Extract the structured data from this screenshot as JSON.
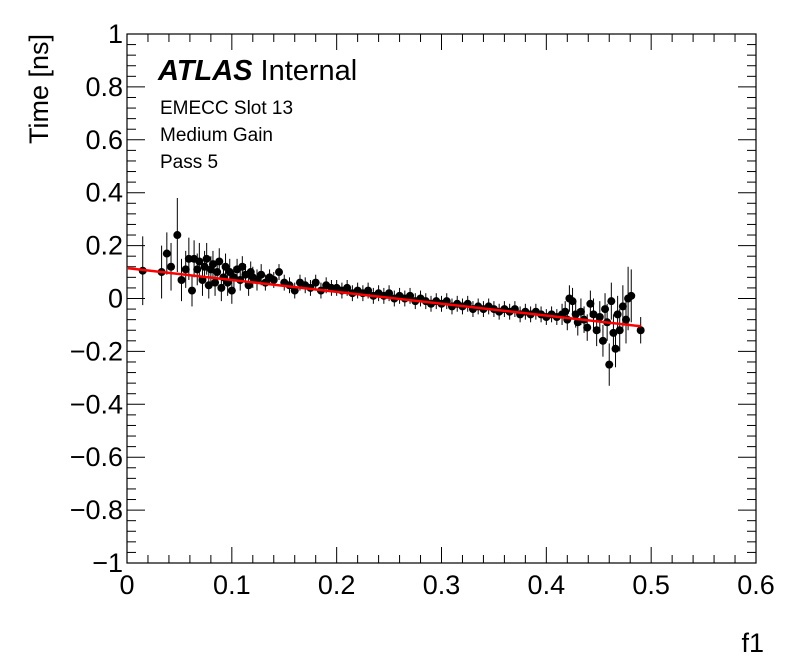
{
  "chart_data": {
    "type": "scatter",
    "xlabel": "f1",
    "ylabel": "Time [ns]",
    "xlim": [
      0,
      0.6
    ],
    "ylim": [
      -1,
      1
    ],
    "x_ticks": [
      0,
      0.1,
      0.2,
      0.3,
      0.4,
      0.5,
      0.6
    ],
    "x_tick_labels": [
      "0",
      "0.1",
      "0.2",
      "0.3",
      "0.4",
      "0.5",
      "0.6"
    ],
    "y_ticks": [
      -1,
      -0.8,
      -0.6,
      -0.4,
      -0.2,
      0,
      0.2,
      0.4,
      0.6,
      0.8,
      1
    ],
    "y_tick_labels": [
      "−1",
      "−0.8",
      "−0.6",
      "−0.4",
      "−0.2",
      "0",
      "0.2",
      "0.4",
      "0.6",
      "0.8",
      "1"
    ],
    "grid": false,
    "annotations": {
      "atlas_bold": "ATLAS",
      "atlas_rest": "Internal",
      "line1": "EMECC Slot 13",
      "line2": "Medium Gain",
      "line3": "Pass 5"
    },
    "fit": {
      "x_range": [
        0.0,
        0.49
      ],
      "y_range": [
        0.115,
        -0.105
      ],
      "color": "#ff0000"
    },
    "marker_color": "#000000",
    "series": [
      {
        "points": [
          {
            "x": 0.015,
            "y": 0.105,
            "err": 0.13
          },
          {
            "x": 0.033,
            "y": 0.1,
            "err": 0.1
          },
          {
            "x": 0.038,
            "y": 0.17,
            "err": 0.08
          },
          {
            "x": 0.042,
            "y": 0.12,
            "err": 0.09
          },
          {
            "x": 0.048,
            "y": 0.24,
            "err": 0.14
          },
          {
            "x": 0.052,
            "y": 0.07,
            "err": 0.08
          },
          {
            "x": 0.056,
            "y": 0.11,
            "err": 0.07
          },
          {
            "x": 0.059,
            "y": 0.15,
            "err": 0.08
          },
          {
            "x": 0.062,
            "y": 0.03,
            "err": 0.06
          },
          {
            "x": 0.064,
            "y": 0.15,
            "err": 0.07
          },
          {
            "x": 0.067,
            "y": 0.11,
            "err": 0.06
          },
          {
            "x": 0.069,
            "y": 0.14,
            "err": 0.07
          },
          {
            "x": 0.072,
            "y": 0.07,
            "err": 0.06
          },
          {
            "x": 0.074,
            "y": 0.12,
            "err": 0.06
          },
          {
            "x": 0.076,
            "y": 0.15,
            "err": 0.06
          },
          {
            "x": 0.078,
            "y": 0.05,
            "err": 0.05
          },
          {
            "x": 0.08,
            "y": 0.11,
            "err": 0.05
          },
          {
            "x": 0.082,
            "y": 0.13,
            "err": 0.05
          },
          {
            "x": 0.084,
            "y": 0.06,
            "err": 0.05
          },
          {
            "x": 0.086,
            "y": 0.1,
            "err": 0.05
          },
          {
            "x": 0.088,
            "y": 0.14,
            "err": 0.05
          },
          {
            "x": 0.09,
            "y": 0.04,
            "err": 0.05
          },
          {
            "x": 0.092,
            "y": 0.08,
            "err": 0.05
          },
          {
            "x": 0.094,
            "y": 0.12,
            "err": 0.05
          },
          {
            "x": 0.096,
            "y": 0.06,
            "err": 0.05
          },
          {
            "x": 0.098,
            "y": 0.1,
            "err": 0.05
          },
          {
            "x": 0.1,
            "y": 0.03,
            "err": 0.05
          },
          {
            "x": 0.102,
            "y": 0.08,
            "err": 0.04
          },
          {
            "x": 0.105,
            "y": 0.11,
            "err": 0.04
          },
          {
            "x": 0.108,
            "y": 0.07,
            "err": 0.04
          },
          {
            "x": 0.11,
            "y": 0.12,
            "err": 0.04
          },
          {
            "x": 0.113,
            "y": 0.09,
            "err": 0.04
          },
          {
            "x": 0.116,
            "y": 0.05,
            "err": 0.04
          },
          {
            "x": 0.118,
            "y": 0.1,
            "err": 0.04
          },
          {
            "x": 0.12,
            "y": 0.08,
            "err": 0.04
          },
          {
            "x": 0.124,
            "y": 0.07,
            "err": 0.04
          },
          {
            "x": 0.128,
            "y": 0.09,
            "err": 0.04
          },
          {
            "x": 0.132,
            "y": 0.06,
            "err": 0.03
          },
          {
            "x": 0.136,
            "y": 0.08,
            "err": 0.03
          },
          {
            "x": 0.14,
            "y": 0.07,
            "err": 0.03
          },
          {
            "x": 0.145,
            "y": 0.1,
            "err": 0.03
          },
          {
            "x": 0.15,
            "y": 0.06,
            "err": 0.03
          },
          {
            "x": 0.155,
            "y": 0.05,
            "err": 0.03
          },
          {
            "x": 0.16,
            "y": 0.03,
            "err": 0.03
          },
          {
            "x": 0.165,
            "y": 0.06,
            "err": 0.03
          },
          {
            "x": 0.17,
            "y": 0.05,
            "err": 0.03
          },
          {
            "x": 0.175,
            "y": 0.04,
            "err": 0.03
          },
          {
            "x": 0.18,
            "y": 0.06,
            "err": 0.03
          },
          {
            "x": 0.185,
            "y": 0.03,
            "err": 0.03
          },
          {
            "x": 0.19,
            "y": 0.05,
            "err": 0.03
          },
          {
            "x": 0.195,
            "y": 0.04,
            "err": 0.03
          },
          {
            "x": 0.2,
            "y": 0.04,
            "err": 0.03
          },
          {
            "x": 0.205,
            "y": 0.03,
            "err": 0.03
          },
          {
            "x": 0.21,
            "y": 0.04,
            "err": 0.03
          },
          {
            "x": 0.215,
            "y": 0.02,
            "err": 0.03
          },
          {
            "x": 0.22,
            "y": 0.03,
            "err": 0.03
          },
          {
            "x": 0.225,
            "y": 0.02,
            "err": 0.03
          },
          {
            "x": 0.23,
            "y": 0.03,
            "err": 0.03
          },
          {
            "x": 0.235,
            "y": 0.01,
            "err": 0.03
          },
          {
            "x": 0.24,
            "y": 0.02,
            "err": 0.03
          },
          {
            "x": 0.245,
            "y": 0.01,
            "err": 0.03
          },
          {
            "x": 0.25,
            "y": 0.02,
            "err": 0.03
          },
          {
            "x": 0.255,
            "y": 0.0,
            "err": 0.03
          },
          {
            "x": 0.26,
            "y": 0.01,
            "err": 0.03
          },
          {
            "x": 0.265,
            "y": 0.0,
            "err": 0.03
          },
          {
            "x": 0.27,
            "y": 0.01,
            "err": 0.03
          },
          {
            "x": 0.275,
            "y": -0.01,
            "err": 0.03
          },
          {
            "x": 0.28,
            "y": 0.0,
            "err": 0.03
          },
          {
            "x": 0.285,
            "y": -0.01,
            "err": 0.03
          },
          {
            "x": 0.29,
            "y": -0.02,
            "err": 0.03
          },
          {
            "x": 0.295,
            "y": -0.01,
            "err": 0.03
          },
          {
            "x": 0.3,
            "y": -0.02,
            "err": 0.03
          },
          {
            "x": 0.305,
            "y": -0.01,
            "err": 0.03
          },
          {
            "x": 0.31,
            "y": -0.03,
            "err": 0.03
          },
          {
            "x": 0.315,
            "y": -0.02,
            "err": 0.03
          },
          {
            "x": 0.32,
            "y": -0.03,
            "err": 0.03
          },
          {
            "x": 0.325,
            "y": -0.02,
            "err": 0.03
          },
          {
            "x": 0.33,
            "y": -0.04,
            "err": 0.03
          },
          {
            "x": 0.335,
            "y": -0.03,
            "err": 0.03
          },
          {
            "x": 0.34,
            "y": -0.04,
            "err": 0.03
          },
          {
            "x": 0.345,
            "y": -0.03,
            "err": 0.03
          },
          {
            "x": 0.35,
            "y": -0.04,
            "err": 0.03
          },
          {
            "x": 0.355,
            "y": -0.05,
            "err": 0.03
          },
          {
            "x": 0.36,
            "y": -0.04,
            "err": 0.03
          },
          {
            "x": 0.365,
            "y": -0.05,
            "err": 0.03
          },
          {
            "x": 0.37,
            "y": -0.04,
            "err": 0.03
          },
          {
            "x": 0.375,
            "y": -0.06,
            "err": 0.03
          },
          {
            "x": 0.38,
            "y": -0.05,
            "err": 0.03
          },
          {
            "x": 0.385,
            "y": -0.06,
            "err": 0.03
          },
          {
            "x": 0.39,
            "y": -0.05,
            "err": 0.03
          },
          {
            "x": 0.395,
            "y": -0.06,
            "err": 0.03
          },
          {
            "x": 0.4,
            "y": -0.07,
            "err": 0.03
          },
          {
            "x": 0.405,
            "y": -0.06,
            "err": 0.03
          },
          {
            "x": 0.41,
            "y": -0.07,
            "err": 0.03
          },
          {
            "x": 0.415,
            "y": -0.06,
            "err": 0.04
          },
          {
            "x": 0.418,
            "y": -0.05,
            "err": 0.04
          },
          {
            "x": 0.42,
            "y": -0.08,
            "err": 0.04
          },
          {
            "x": 0.422,
            "y": 0.0,
            "err": 0.05
          },
          {
            "x": 0.425,
            "y": -0.01,
            "err": 0.05
          },
          {
            "x": 0.428,
            "y": -0.06,
            "err": 0.05
          },
          {
            "x": 0.43,
            "y": -0.09,
            "err": 0.05
          },
          {
            "x": 0.433,
            "y": -0.05,
            "err": 0.05
          },
          {
            "x": 0.436,
            "y": -0.08,
            "err": 0.05
          },
          {
            "x": 0.439,
            "y": -0.11,
            "err": 0.05
          },
          {
            "x": 0.442,
            "y": -0.02,
            "err": 0.05
          },
          {
            "x": 0.445,
            "y": -0.06,
            "err": 0.06
          },
          {
            "x": 0.448,
            "y": -0.12,
            "err": 0.06
          },
          {
            "x": 0.451,
            "y": -0.07,
            "err": 0.06
          },
          {
            "x": 0.454,
            "y": -0.16,
            "err": 0.06
          },
          {
            "x": 0.456,
            "y": -0.04,
            "err": 0.06
          },
          {
            "x": 0.458,
            "y": -0.09,
            "err": 0.07
          },
          {
            "x": 0.46,
            "y": -0.25,
            "err": 0.08
          },
          {
            "x": 0.462,
            "y": -0.01,
            "err": 0.07
          },
          {
            "x": 0.464,
            "y": -0.13,
            "err": 0.07
          },
          {
            "x": 0.466,
            "y": -0.19,
            "err": 0.07
          },
          {
            "x": 0.468,
            "y": -0.06,
            "err": 0.07
          },
          {
            "x": 0.47,
            "y": -0.12,
            "err": 0.08
          },
          {
            "x": 0.473,
            "y": -0.03,
            "err": 0.08
          },
          {
            "x": 0.476,
            "y": -0.08,
            "err": 0.09
          },
          {
            "x": 0.478,
            "y": 0.0,
            "err": 0.12
          },
          {
            "x": 0.481,
            "y": 0.01,
            "err": 0.1
          },
          {
            "x": 0.49,
            "y": -0.12,
            "err": 0.05
          }
        ]
      }
    ]
  }
}
